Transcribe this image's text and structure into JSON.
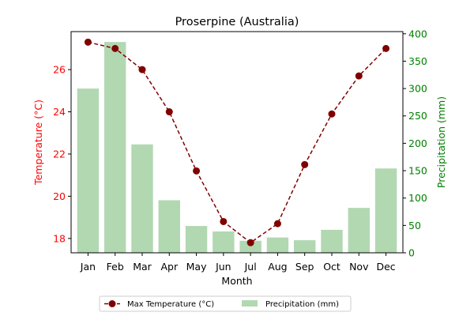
{
  "chart_data": {
    "type": "bar+line",
    "title": "Proserpine (Australia)",
    "xlabel": "Month",
    "categories": [
      "Jan",
      "Feb",
      "Mar",
      "Apr",
      "May",
      "Jun",
      "Jul",
      "Aug",
      "Sep",
      "Oct",
      "Nov",
      "Dec"
    ],
    "series": [
      {
        "name": "Max Temperature (°C)",
        "kind": "line",
        "axis": "left",
        "color": "#800000",
        "style": "dashed",
        "marker": "circle",
        "values": [
          27.3,
          27.0,
          26.0,
          24.0,
          21.2,
          18.8,
          17.8,
          18.7,
          21.5,
          23.9,
          25.7,
          27.0
        ]
      },
      {
        "name": "Precipitation (mm)",
        "kind": "bar",
        "axis": "right",
        "color": "#b2d8b2",
        "values": [
          300,
          385,
          198,
          96,
          49,
          39,
          22,
          28,
          23,
          42,
          82,
          154
        ]
      }
    ],
    "y_left": {
      "label": "Temperature (°C)",
      "color": "#ff0000",
      "ylim": [
        17.32,
        27.8
      ],
      "ticks": [
        18,
        20,
        22,
        24,
        26
      ]
    },
    "y_right": {
      "label": "Precipitation (mm)",
      "color": "#008000",
      "ylim": [
        0,
        404
      ],
      "ticks": [
        0,
        50,
        100,
        150,
        200,
        250,
        300,
        350,
        400
      ]
    },
    "grid": false,
    "legend_placement": "bottom-center"
  }
}
